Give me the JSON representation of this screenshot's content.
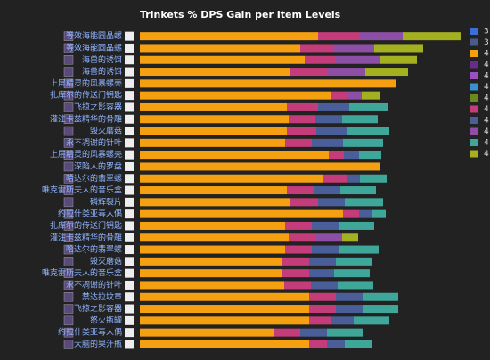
{
  "chart_data": {
    "type": "bar",
    "orientation": "horizontal",
    "stacked": true,
    "title": "Trinkets % DPS Gain per Item Levels",
    "categories": [
      "等效海能圆晶螺",
      "等效海能圆晶螺",
      "海兽的诱饵",
      "海兽的诱饵",
      "上层精灵的风暴螺壳",
      "扎库尔的传送门钥匙",
      "飞掠之影容器",
      "灌注卡兹精华的骨雕",
      "毁灭蘑菇",
      "永不凋谢的针叶",
      "上层精灵的风暴螺壳",
      "深陷人的罗盘",
      "哈达尔的翡翠螺",
      "唯克雷斯夫人的音乐盒",
      "磷辉裂片",
      "约拉什类亚毒人偶",
      "扎库尔的传送门钥匙",
      "灌注卡兹精华的骨雕",
      "哈达尔的翡翠螺",
      "毁灭蘑菇",
      "唯克雷斯夫人的音乐盒",
      "永不凋谢的针叶",
      "禁达拉坟章",
      "飞掠之影容器",
      "怒火瓶罐",
      "约拉什类亚毒人偶",
      "大脑的果汁瓶"
    ],
    "xlim": [
      0,
      370
    ],
    "series": [
      {
        "name": "3",
        "color": "#3b6fd6",
        "values": [
          null,
          null,
          null,
          null,
          null,
          null,
          null,
          null,
          null,
          null,
          null,
          null,
          null,
          null,
          null,
          null,
          null,
          null,
          null,
          null,
          null,
          null,
          null,
          null,
          null,
          null,
          null
        ]
      },
      {
        "name": "3",
        "color": "#4a5a8a",
        "values": [
          null,
          null,
          null,
          null,
          null,
          null,
          null,
          null,
          null,
          null,
          null,
          null,
          null,
          null,
          null,
          null,
          null,
          null,
          null,
          null,
          null,
          null,
          null,
          null,
          null,
          null,
          null
        ]
      },
      {
        "name": "4",
        "color": "#f5a011",
        "values": [
          200,
          180,
          185,
          168,
          288,
          215,
          165,
          167,
          165,
          163,
          212,
          270,
          205,
          165,
          168,
          228,
          163,
          167,
          163,
          160,
          160,
          162,
          190,
          190,
          190,
          150,
          190
        ]
      },
      {
        "name": "4",
        "color": "#6a2c8c",
        "values": [
          null,
          null,
          null,
          null,
          null,
          null,
          null,
          null,
          null,
          null,
          null,
          null,
          null,
          null,
          null,
          null,
          null,
          null,
          null,
          null,
          null,
          null,
          null,
          null,
          null,
          null,
          null
        ]
      },
      {
        "name": "4",
        "color": "#9b4fc0",
        "values": [
          null,
          null,
          null,
          null,
          null,
          null,
          null,
          null,
          null,
          null,
          null,
          null,
          null,
          null,
          null,
          null,
          null,
          null,
          null,
          null,
          null,
          null,
          null,
          null,
          null,
          null,
          null
        ]
      },
      {
        "name": "4",
        "color": "#3b8fd0",
        "values": [
          null,
          null,
          null,
          null,
          null,
          null,
          null,
          null,
          null,
          null,
          null,
          null,
          null,
          null,
          null,
          null,
          null,
          null,
          null,
          null,
          null,
          null,
          null,
          null,
          null,
          null,
          null
        ]
      },
      {
        "name": "4",
        "color": "#6a8a1f",
        "values": [
          null,
          null,
          null,
          null,
          null,
          null,
          null,
          null,
          null,
          null,
          null,
          null,
          null,
          null,
          null,
          null,
          null,
          null,
          null,
          null,
          null,
          null,
          null,
          null,
          null,
          null,
          null
        ]
      },
      {
        "name": "4",
        "color": "#c43c7a",
        "values": [
          46,
          38,
          35,
          43,
          null,
          17,
          35,
          30,
          33,
          30,
          17,
          null,
          27,
          30,
          32,
          18,
          30,
          30,
          30,
          30,
          30,
          30,
          30,
          30,
          25,
          30,
          20
        ]
      },
      {
        "name": "4",
        "color": "#4a5f9a",
        "values": [
          null,
          null,
          null,
          null,
          null,
          null,
          35,
          30,
          35,
          35,
          17,
          null,
          15,
          30,
          30,
          15,
          30,
          null,
          30,
          30,
          28,
          30,
          30,
          30,
          25,
          30,
          20
        ]
      },
      {
        "name": "4",
        "color": "#8d4fa5",
        "values": [
          49,
          45,
          50,
          42,
          null,
          17,
          null,
          null,
          null,
          null,
          null,
          null,
          null,
          null,
          null,
          null,
          null,
          30,
          null,
          null,
          null,
          null,
          null,
          null,
          null,
          null,
          null
        ]
      },
      {
        "name": "4",
        "color": "#3fa79a",
        "values": [
          null,
          null,
          null,
          null,
          null,
          null,
          44,
          40,
          47,
          45,
          25,
          null,
          30,
          40,
          43,
          15,
          40,
          null,
          45,
          40,
          40,
          40,
          40,
          40,
          40,
          40,
          30
        ]
      },
      {
        "name": "4",
        "color": "#a3b020",
        "values": [
          66,
          55,
          41,
          48,
          null,
          20,
          null,
          null,
          null,
          null,
          null,
          null,
          null,
          null,
          null,
          null,
          null,
          18,
          null,
          null,
          null,
          null,
          null,
          null,
          null,
          null,
          null
        ]
      }
    ]
  }
}
